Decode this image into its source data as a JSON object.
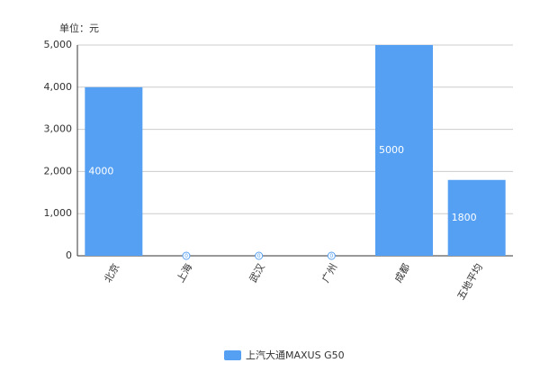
{
  "chart_data": {
    "type": "bar",
    "unit_label": "单位：元",
    "categories": [
      "北京",
      "上海",
      "武汉",
      "广州",
      "成都",
      "五地平均"
    ],
    "series": [
      {
        "name": "上汽大通MAXUS G50",
        "color": "#55a0f2",
        "values": [
          4000,
          0,
          0,
          0,
          5000,
          1800
        ]
      }
    ],
    "ylim": [
      0,
      5000
    ],
    "yticks": [
      0,
      {
        "value": 1000,
        "label": "1,000"
      },
      {
        "value": 2000,
        "label": "2,000"
      },
      {
        "value": 3000,
        "label": "3,000"
      },
      {
        "value": 4000,
        "label": "4,000"
      },
      {
        "value": 5000,
        "label": "5,000"
      }
    ],
    "grid": true,
    "legend": "bottom"
  }
}
